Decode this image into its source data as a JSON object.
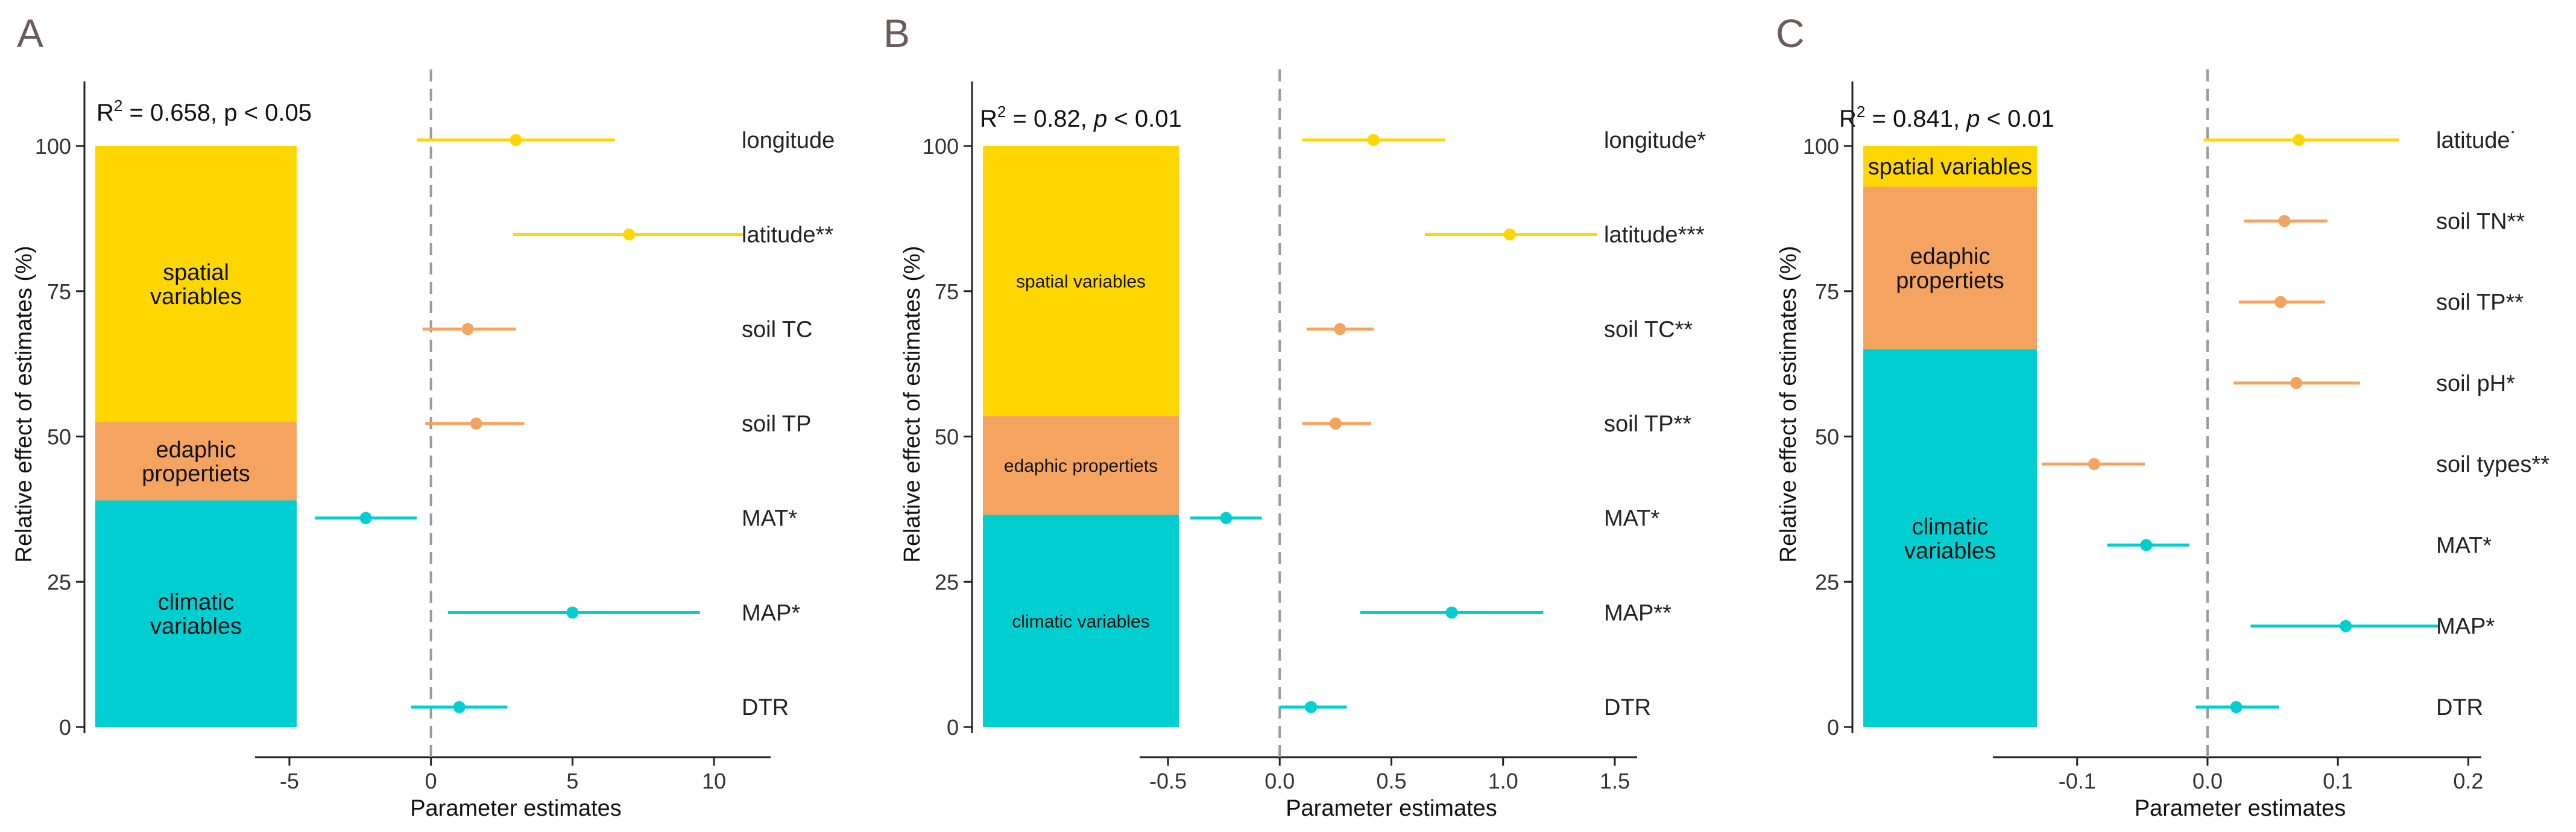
{
  "colors": {
    "spatial": "#FFD700",
    "edaphic": "#F4A460",
    "climatic": "#00CED1",
    "axis": "#222222",
    "dashed": "#999999",
    "panel_label": "#6b5b5b"
  },
  "chart_data": [
    {
      "type": "forest-stacked-bar",
      "panel": "A",
      "title": "",
      "stat": {
        "pre": "R",
        "sup": "2",
        "mid": " = 0.658, ",
        "p": "p",
        "post": " < 0.05"
      },
      "ylabel": "Relative effect of estimates (%)",
      "xlabel": "Parameter estimates",
      "ylim": [
        0,
        100
      ],
      "yticks": [
        "0",
        "25",
        "50",
        "75",
        "100"
      ],
      "xlim": [
        -6,
        12
      ],
      "xticks": [
        -5,
        0,
        5,
        10
      ],
      "xtick_labels": [
        "-5",
        "0",
        "5",
        "10"
      ],
      "groups": [
        {
          "name": "climatic variables",
          "lines": [
            "climatic",
            "variables"
          ],
          "value": 39,
          "color": "climatic"
        },
        {
          "name": "edaphic propertiets",
          "lines": [
            "edaphic",
            "propertiets"
          ],
          "value": 13.5,
          "color": "edaphic"
        },
        {
          "name": "spatial variables",
          "lines": [
            "spatial",
            "variables"
          ],
          "value": 47.5,
          "color": "spatial"
        }
      ],
      "estimates": [
        {
          "label": "longitude",
          "sig": "",
          "estimate": 3.0,
          "low": -0.5,
          "high": 6.5,
          "color": "spatial"
        },
        {
          "label": "latitude",
          "sig": "**",
          "estimate": 7.0,
          "low": 2.9,
          "high": 11.1,
          "color": "spatial"
        },
        {
          "label": "soil TC",
          "sig": "",
          "estimate": 1.3,
          "low": -0.3,
          "high": 3.0,
          "color": "edaphic"
        },
        {
          "label": "soil TP",
          "sig": "",
          "estimate": 1.6,
          "low": -0.2,
          "high": 3.3,
          "color": "edaphic"
        },
        {
          "label": "MAT",
          "sig": "*",
          "estimate": -2.3,
          "low": -4.1,
          "high": -0.5,
          "color": "climatic"
        },
        {
          "label": "MAP",
          "sig": "*",
          "estimate": 5.0,
          "low": 0.6,
          "high": 9.5,
          "color": "climatic"
        },
        {
          "label": "DTR",
          "sig": "",
          "estimate": 1.0,
          "low": -0.7,
          "high": 2.7,
          "color": "climatic"
        }
      ]
    },
    {
      "type": "forest-stacked-bar",
      "panel": "B",
      "title": "",
      "stat": {
        "pre": "R",
        "sup": "2",
        "mid": " = 0.82, ",
        "p": "p",
        "post": " < 0.01"
      },
      "ylabel": "Relative effect of estimates (%)",
      "xlabel": "Parameter estimates",
      "ylim": [
        0,
        100
      ],
      "yticks": [
        "0",
        "25",
        "50",
        "75",
        "100"
      ],
      "xlim": [
        -0.6,
        1.6
      ],
      "xticks": [
        -0.5,
        0,
        0.5,
        1,
        1.5
      ],
      "xtick_labels": [
        "-0.5",
        "0.0",
        "0.5",
        "1.0",
        "1.5"
      ],
      "groups": [
        {
          "name": "climatic variables",
          "lines": [
            "climatic variables"
          ],
          "value": 36.5,
          "color": "climatic"
        },
        {
          "name": "edaphic propertiets",
          "lines": [
            "edaphic propertiets"
          ],
          "value": 17,
          "color": "edaphic"
        },
        {
          "name": "spatial variables",
          "lines": [
            "spatial variables"
          ],
          "value": 46.5,
          "color": "spatial"
        }
      ],
      "estimates": [
        {
          "label": "longitude",
          "sig": "*",
          "estimate": 0.42,
          "low": 0.1,
          "high": 0.74,
          "color": "spatial"
        },
        {
          "label": "latitude",
          "sig": "***",
          "estimate": 1.03,
          "low": 0.65,
          "high": 1.42,
          "color": "spatial"
        },
        {
          "label": "soil TC",
          "sig": "**",
          "estimate": 0.27,
          "low": 0.12,
          "high": 0.42,
          "color": "edaphic"
        },
        {
          "label": "soil TP",
          "sig": "**",
          "estimate": 0.25,
          "low": 0.1,
          "high": 0.41,
          "color": "edaphic"
        },
        {
          "label": "MAT",
          "sig": "*",
          "estimate": -0.24,
          "low": -0.4,
          "high": -0.08,
          "color": "climatic"
        },
        {
          "label": "MAP",
          "sig": "**",
          "estimate": 0.77,
          "low": 0.36,
          "high": 1.18,
          "color": "climatic"
        },
        {
          "label": "DTR",
          "sig": "",
          "estimate": 0.14,
          "low": 0.0,
          "high": 0.3,
          "color": "climatic"
        }
      ]
    },
    {
      "type": "forest-stacked-bar",
      "panel": "C",
      "title": "",
      "stat": {
        "pre": "R",
        "sup": "2",
        "mid": " = 0.841, ",
        "p": "p",
        "post": " < 0.01"
      },
      "ylabel": "Relative effect of estimates (%)",
      "xlabel": "Parameter estimates",
      "ylim": [
        0,
        100
      ],
      "yticks": [
        "0",
        "25",
        "50",
        "75",
        "100"
      ],
      "xlim": [
        -0.16,
        0.21
      ],
      "xticks": [
        -0.1,
        0,
        0.1,
        0.2
      ],
      "xtick_labels": [
        "-0.1",
        "0.0",
        "0.1",
        "0.2"
      ],
      "groups": [
        {
          "name": "climatic variables",
          "lines": [
            "climatic",
            "variables"
          ],
          "value": 65,
          "color": "climatic"
        },
        {
          "name": "edaphic propertiets",
          "lines": [
            "edaphic",
            "propertiets"
          ],
          "value": 28,
          "color": "edaphic"
        },
        {
          "name": "spatial variables",
          "lines": [
            "spatial variables"
          ],
          "value": 7,
          "color": "spatial"
        }
      ],
      "estimates": [
        {
          "label": "latitude",
          "sig": "˙",
          "estimate": 0.07,
          "low": -0.003,
          "high": 0.147,
          "color": "spatial"
        },
        {
          "label": "soil TN",
          "sig": "**",
          "estimate": 0.059,
          "low": 0.028,
          "high": 0.092,
          "color": "edaphic"
        },
        {
          "label": "soil TP",
          "sig": "**",
          "estimate": 0.056,
          "low": 0.024,
          "high": 0.09,
          "color": "edaphic"
        },
        {
          "label": "soil pH",
          "sig": "*",
          "estimate": 0.068,
          "low": 0.02,
          "high": 0.117,
          "color": "edaphic"
        },
        {
          "label": "soil types",
          "sig": "**",
          "estimate": -0.087,
          "low": -0.127,
          "high": -0.048,
          "color": "edaphic"
        },
        {
          "label": "MAT",
          "sig": "*",
          "estimate": -0.047,
          "low": -0.077,
          "high": -0.014,
          "color": "climatic"
        },
        {
          "label": "MAP",
          "sig": "*",
          "estimate": 0.106,
          "low": 0.033,
          "high": 0.178,
          "color": "climatic"
        },
        {
          "label": "DTR",
          "sig": "",
          "estimate": 0.022,
          "low": -0.009,
          "high": 0.055,
          "color": "climatic"
        }
      ]
    }
  ]
}
